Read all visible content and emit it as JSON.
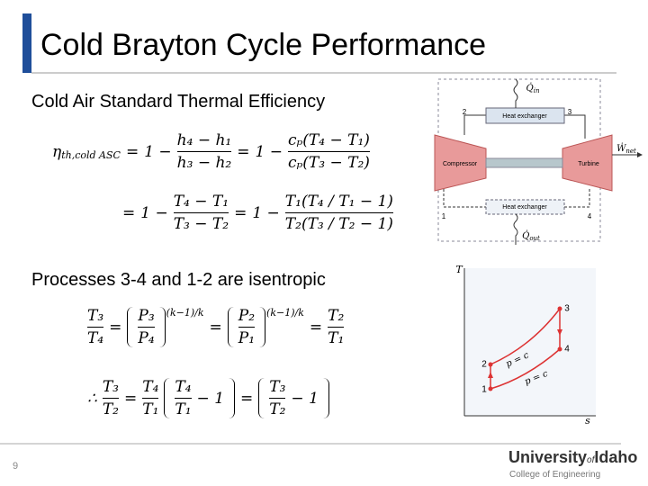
{
  "slide": {
    "title": "Cold Brayton Cycle Performance",
    "page_number": "9"
  },
  "sections": [
    {
      "heading": "Cold Air Standard Thermal Efficiency"
    },
    {
      "heading": "Processes 3-4 and 1-2 are isentropic"
    }
  ],
  "equations": [
    {
      "items": [
        {
          "base": "η",
          "sub": "th,cold ASC"
        },
        "=",
        "1 −",
        {
          "num": "h₄ − h₁",
          "den": "h₃ − h₂"
        },
        "=",
        "1 −",
        {
          "num": "cₚ(T₄ − T₁)",
          "den": "cₚ(T₃ − T₂)"
        }
      ]
    },
    {
      "items": [
        "=",
        "1 −",
        {
          "num": "T₄ − T₁",
          "den": "T₃ − T₂"
        },
        "=",
        "1 −",
        {
          "num": "T₁(T₄ / T₁ − 1)",
          "den": "T₂(T₃ / T₂ − 1)"
        }
      ]
    },
    {
      "items": [
        {
          "num": "T₃",
          "den": "T₄"
        },
        "=",
        {
          "group": [
            {
              "num": "P₃",
              "den": "P₄"
            }
          ],
          "sup": "(k−1)/k"
        },
        "=",
        {
          "group": [
            {
              "num": "P₂",
              "den": "P₁"
            }
          ],
          "sup": "(k−1)/k"
        },
        "=",
        {
          "num": "T₂",
          "den": "T₁"
        }
      ]
    },
    {
      "items": [
        "∴",
        {
          "num": "T₃",
          "den": "T₂"
        },
        "=",
        {
          "num": "T₄",
          "den": "T₁"
        },
        {
          "group": [
            {
              "num": "T₄",
              "den": "T₁"
            },
            "− 1"
          ]
        },
        "=",
        {
          "group": [
            {
              "num": "T₃",
              "den": "T₂"
            },
            "− 1"
          ]
        }
      ]
    }
  ],
  "cycle_diagram": {
    "heat_exchanger_top": "Heat exchanger",
    "heat_exchanger_bottom": "Heat exchanger",
    "compressor": "Compressor",
    "turbine": "Turbine",
    "q_in": {
      "base": "Q̇",
      "sub": "in"
    },
    "q_out": {
      "base": "Q̇",
      "sub": "out"
    },
    "w_net": {
      "base": "Ẇ",
      "sub": "net"
    },
    "states": [
      "1",
      "2",
      "3",
      "4"
    ]
  },
  "ts_diagram": {
    "y_axis": "T",
    "x_axis": "s",
    "isobar_high": "p = c",
    "isobar_low": "p = c",
    "states": [
      "1",
      "2",
      "3",
      "4"
    ]
  },
  "logo": {
    "name_part1": "University",
    "name_of": "of",
    "name_part2": "Idaho",
    "subtitle": "College of Engineering"
  }
}
